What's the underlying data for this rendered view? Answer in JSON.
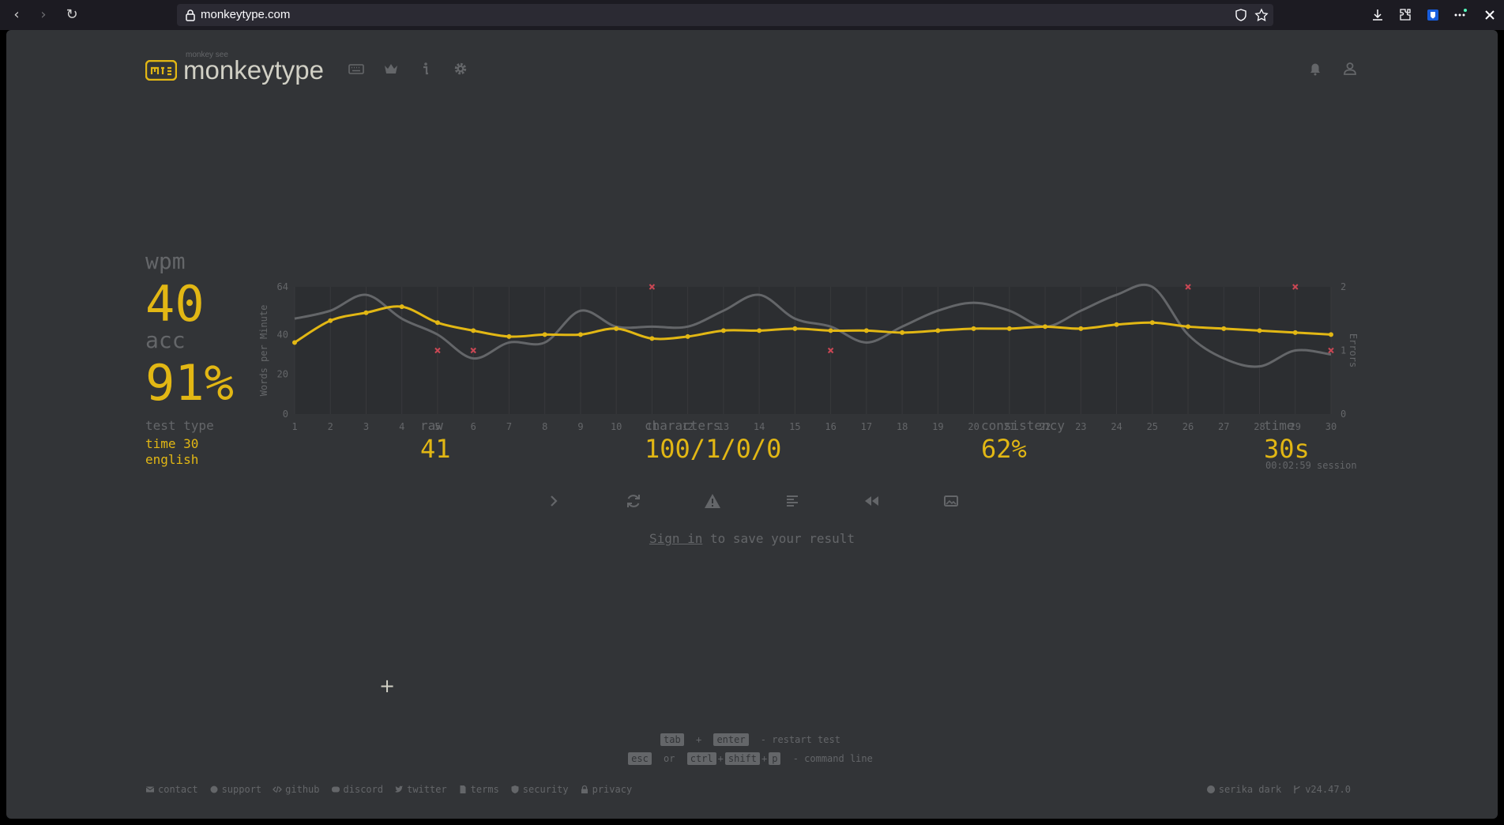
{
  "browser": {
    "url": "monkeytype.com",
    "nav": {
      "back": "‹",
      "forward": "›",
      "reload": "↻"
    },
    "icons": [
      "shield-icon",
      "star-icon",
      "download-icon",
      "extensions-icon",
      "bitwarden-icon",
      "more-icon",
      "close-icon"
    ]
  },
  "header": {
    "logo_small": "monkey see",
    "logo_text": "monkeytype",
    "nav_icons": [
      "keyboard-icon",
      "crown-icon",
      "info-icon",
      "gear-icon"
    ],
    "right_icons": [
      "bell-icon",
      "user-icon"
    ]
  },
  "result": {
    "wpm_label": "wpm",
    "wpm_value": "40",
    "acc_label": "acc",
    "acc_value": "91%",
    "test_type_label": "test type",
    "test_type_line1": "time 30",
    "test_type_line2": "english",
    "raw_label": "raw",
    "raw_value": "41",
    "characters_label": "characters",
    "characters_value": "100/1/0/0",
    "consistency_label": "consistency",
    "consistency_value": "62%",
    "time_label": "time",
    "time_value": "30s",
    "session_note": "00:02:59 session"
  },
  "chart_data": {
    "type": "line",
    "x": [
      1,
      2,
      3,
      4,
      5,
      6,
      7,
      8,
      9,
      10,
      11,
      12,
      13,
      14,
      15,
      16,
      17,
      18,
      19,
      20,
      21,
      22,
      23,
      24,
      25,
      26,
      27,
      28,
      29,
      30
    ],
    "ylabel": "Words per Minute",
    "y2label": "Errors",
    "ylim": [
      0,
      64
    ],
    "y2lim": [
      0,
      2
    ],
    "yticks": [
      "0",
      "20",
      "40",
      "64"
    ],
    "y2ticks": [
      "0",
      "1",
      "2"
    ],
    "series": [
      {
        "values": [
          36,
          47,
          51,
          54,
          46,
          42,
          39,
          40,
          40,
          43,
          38,
          39,
          42,
          42,
          43,
          42,
          42,
          41,
          42,
          43,
          43,
          44,
          43,
          45,
          46,
          44,
          43,
          42,
          41,
          40
        ],
        "color": "#e2b714"
      },
      {
        "values": [
          48,
          52,
          60,
          48,
          40,
          28,
          36,
          36,
          52,
          44,
          44,
          44,
          52,
          60,
          48,
          44,
          36,
          44,
          52,
          56,
          52,
          44,
          52,
          60,
          64,
          40,
          28,
          24,
          32,
          30
        ],
        "color": "#646669"
      },
      {
        "values": [
          0,
          0,
          0,
          0,
          1,
          1,
          0,
          0,
          0,
          0,
          2,
          0,
          0,
          0,
          0,
          1,
          0,
          0,
          0,
          0,
          0,
          0,
          0,
          0,
          0,
          2,
          0,
          0,
          2,
          1
        ],
        "color": "#ca4754"
      }
    ],
    "grid": true,
    "legend": "none"
  },
  "actions": {
    "icons": [
      "next-test-icon",
      "restart-icon",
      "warning-icon",
      "word-history-icon",
      "replay-icon",
      "screenshot-icon"
    ]
  },
  "save_note": {
    "link": "Sign in",
    "rest": " to save your result"
  },
  "cursor": "+",
  "hints": {
    "line1": {
      "k1": "tab",
      "plus": "+",
      "k2": "enter",
      "text": "- restart test"
    },
    "line2": {
      "k1": "esc",
      "or": "or",
      "k2": "ctrl",
      "plus1": "+",
      "k3": "shift",
      "plus2": "+",
      "k4": "p",
      "text": "- command line"
    }
  },
  "footer": {
    "left": [
      {
        "label": "contact",
        "icon": "mail-icon"
      },
      {
        "label": "support",
        "icon": "donate-icon"
      },
      {
        "label": "github",
        "icon": "code-icon"
      },
      {
        "label": "discord",
        "icon": "discord-icon"
      },
      {
        "label": "twitter",
        "icon": "twitter-icon"
      },
      {
        "label": "terms",
        "icon": "file-icon"
      },
      {
        "label": "security",
        "icon": "shield-icon"
      },
      {
        "label": "privacy",
        "icon": "lock-icon"
      }
    ],
    "theme": "serika dark",
    "version": "v24.47.0"
  },
  "colors": {
    "bg": "#323437",
    "main": "#e2b714",
    "sub": "#646669",
    "text": "#d1d0c5",
    "error": "#ca4754"
  }
}
